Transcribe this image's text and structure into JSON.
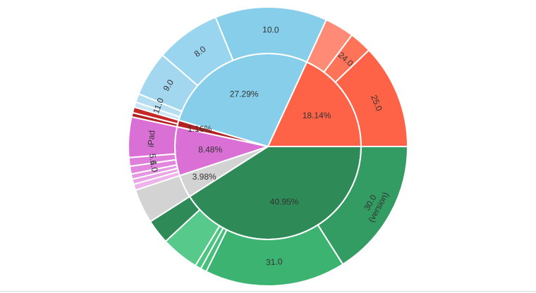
{
  "chart_data": {
    "type": "sunburst",
    "title": "",
    "inner": [
      {
        "key": "green",
        "label": "40.95%",
        "value": 40.95,
        "color": "#2e8b57"
      },
      {
        "key": "gray",
        "label": "3.98%",
        "value": 3.98,
        "color": "#d3d3d3"
      },
      {
        "key": "violet",
        "label": "8.48%",
        "value": 8.48,
        "color": "#da70d6"
      },
      {
        "key": "red",
        "label": "1.16%",
        "value": 1.16,
        "color": "#b22222"
      },
      {
        "key": "blue",
        "label": "27.29%",
        "value": 27.29,
        "color": "#87ceeb"
      },
      {
        "key": "orange",
        "label": "18.14%",
        "value": 18.14,
        "color": "#ff6347"
      }
    ],
    "outer": [
      {
        "parent": "green",
        "label": "30.0 (version)",
        "value": 16.0,
        "color": "#339c62"
      },
      {
        "parent": "green",
        "label": "31.0",
        "value": 16.3,
        "color": "#3cb371"
      },
      {
        "parent": "green",
        "label": "",
        "value": 0.7,
        "color": "#45bf7a"
      },
      {
        "parent": "green",
        "label": "",
        "value": 0.7,
        "color": "#4cc581"
      },
      {
        "parent": "green",
        "label": "",
        "value": 4.4,
        "color": "#57c98a"
      },
      {
        "parent": "green",
        "label": "",
        "value": 2.85,
        "color": "#2e8b57"
      },
      {
        "parent": "gray",
        "label": "",
        "value": 3.98,
        "color": "#d3d3d3"
      },
      {
        "parent": "violet",
        "label": "",
        "value": 0.7,
        "color": "#edb3ea"
      },
      {
        "parent": "violet",
        "label": "",
        "value": 0.6,
        "color": "#e9a4e6"
      },
      {
        "parent": "violet",
        "label": "",
        "value": 0.6,
        "color": "#e596e1"
      },
      {
        "parent": "violet",
        "label": "6.0",
        "value": 0.9,
        "color": "#e286de"
      },
      {
        "parent": "violet",
        "label": "5.1",
        "value": 1.0,
        "color": "#df7edb"
      },
      {
        "parent": "violet",
        "label": "iPad",
        "value": 4.68,
        "color": "#da70d6"
      },
      {
        "parent": "red",
        "label": "",
        "value": 0.5,
        "color": "#b22222"
      },
      {
        "parent": "red",
        "label": "",
        "value": 0.66,
        "color": "#c62828"
      },
      {
        "parent": "blue",
        "label": "",
        "value": 0.6,
        "color": "#c8e6f5"
      },
      {
        "parent": "blue",
        "label": "11.0",
        "value": 1.0,
        "color": "#b5def1"
      },
      {
        "parent": "blue",
        "label": "9.0",
        "value": 5.2,
        "color": "#a3d6ef"
      },
      {
        "parent": "blue",
        "label": "8.0",
        "value": 7.5,
        "color": "#9ad5f0"
      },
      {
        "parent": "blue",
        "label": "10.0",
        "value": 12.99,
        "color": "#87ceeb"
      },
      {
        "parent": "orange",
        "label": "",
        "value": 3.4,
        "color": "#ff8a76"
      },
      {
        "parent": "orange",
        "label": "24.0",
        "value": 2.6,
        "color": "#ff7359"
      },
      {
        "parent": "orange",
        "label": "25.0",
        "value": 12.14,
        "color": "#ff6347"
      }
    ]
  }
}
